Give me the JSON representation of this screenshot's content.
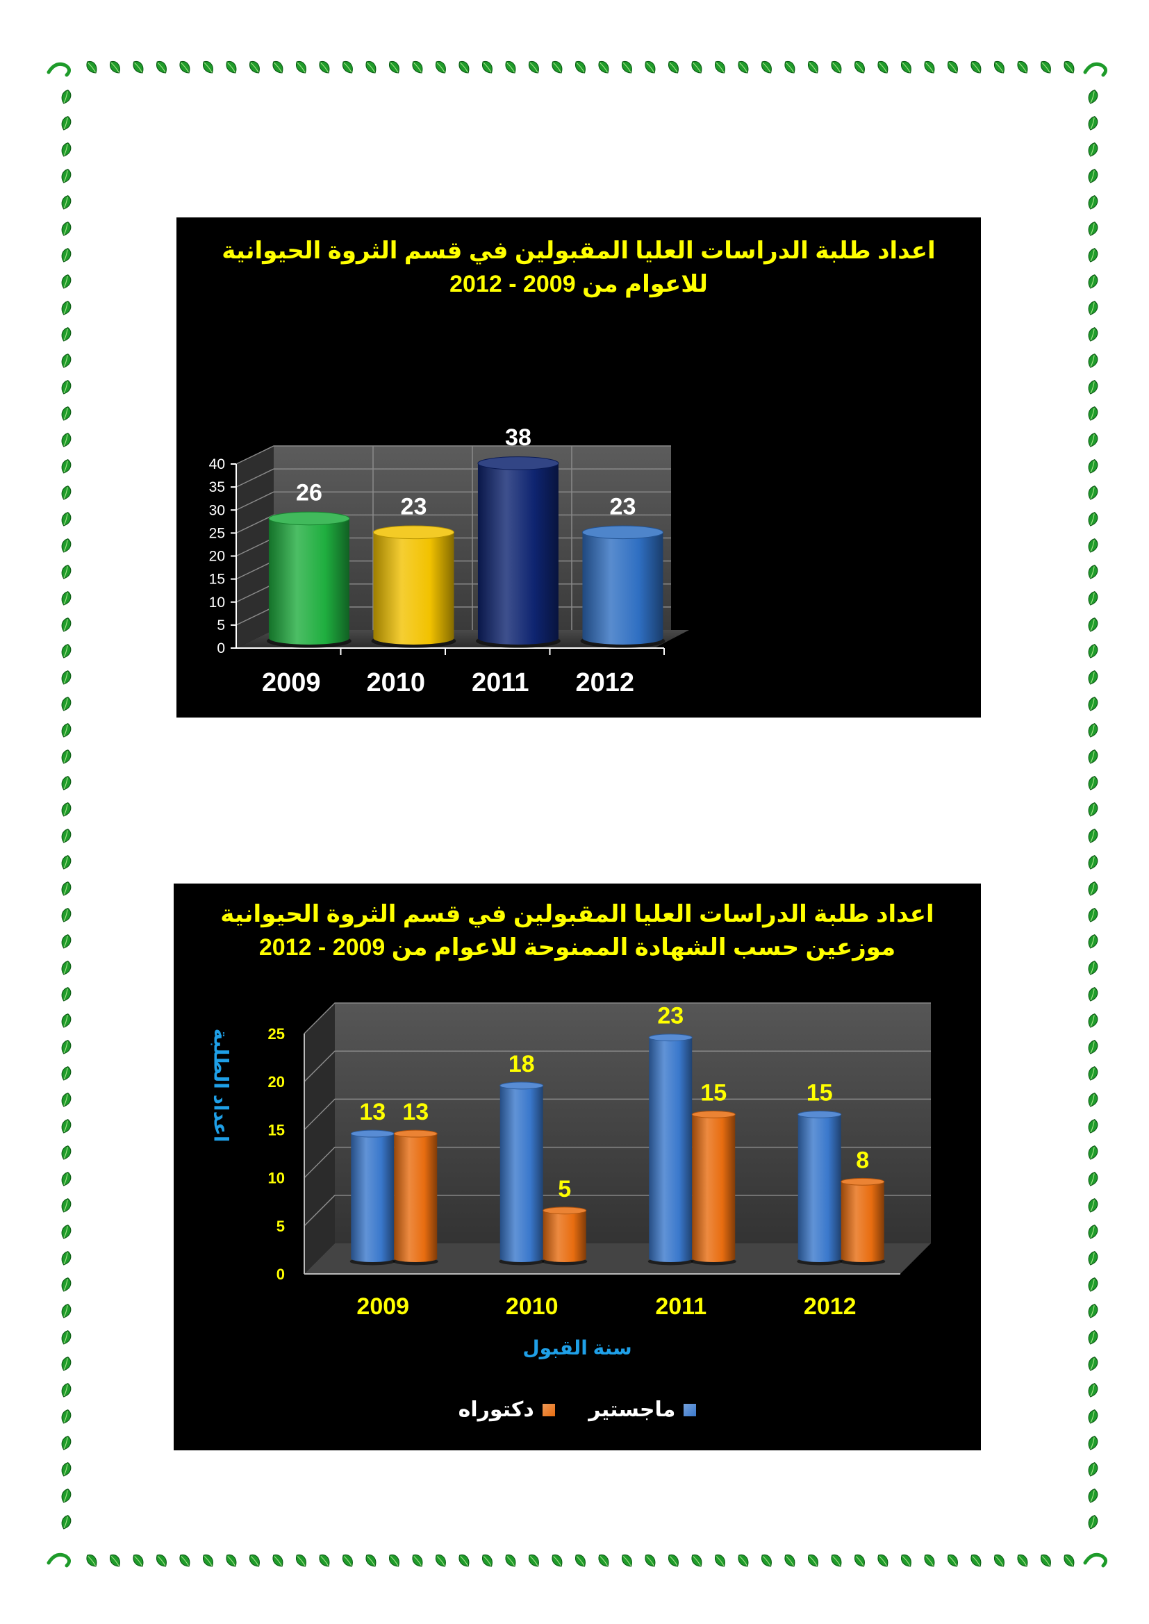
{
  "chart_data": [
    {
      "type": "bar",
      "title_lines": [
        "اعداد طلبة الدراسات العليا المقبولين في قسم الثروة الحيوانية",
        "للاعوام من 2009 - 2012"
      ],
      "categories": [
        "2009",
        "2010",
        "2011",
        "2012"
      ],
      "values": [
        26,
        23,
        38,
        23
      ],
      "data_labels": [
        "26",
        "23",
        "38",
        "23"
      ],
      "bar_colors": [
        "#1fae3f",
        "#f2c200",
        "#0e2470",
        "#2f6fc2"
      ],
      "ylim": [
        0,
        40
      ],
      "yticks": [
        "0",
        "5",
        "10",
        "15",
        "20",
        "25",
        "30",
        "35",
        "40"
      ],
      "grid": true,
      "style": "3d-cylinder"
    },
    {
      "type": "bar",
      "title_lines": [
        "اعداد طلبة الدراسات العليا المقبولين في قسم الثروة الحيوانية",
        "موزعين حسب الشهادة الممنوحة للاعوام من 2009 - 2012"
      ],
      "categories": [
        "2009",
        "2010",
        "2011",
        "2012"
      ],
      "series": [
        {
          "name": "ماجستير",
          "values": [
            13,
            18,
            23,
            15
          ],
          "labels": [
            "13",
            "18",
            "23",
            "15"
          ],
          "color": "#3a78cc"
        },
        {
          "name": "دكتوراه",
          "values": [
            13,
            5,
            15,
            8
          ],
          "labels": [
            "13",
            "5",
            "15",
            "8"
          ],
          "color": "#e86d10"
        }
      ],
      "xlabel": "سنة القبول",
      "ylabel": "اعداد الطلبة",
      "ylim": [
        0,
        25
      ],
      "yticks": [
        "0",
        "5",
        "10",
        "15",
        "20",
        "25"
      ],
      "grid": true,
      "legend": "bottom",
      "style": "3d-cylinder"
    }
  ]
}
